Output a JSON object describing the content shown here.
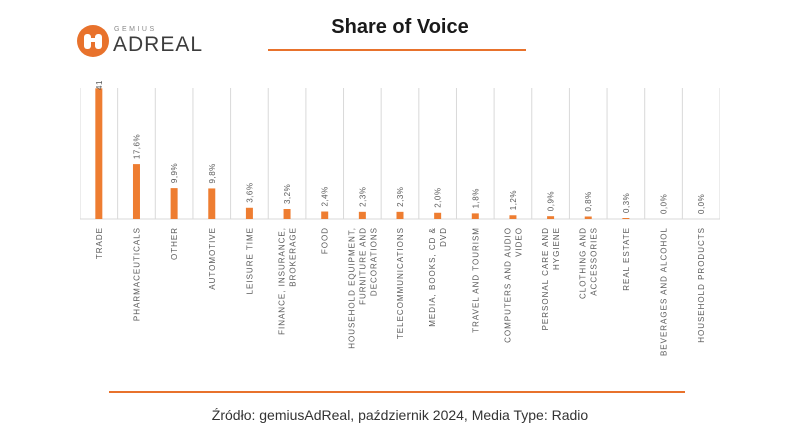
{
  "logo": {
    "small": "GEMIUS",
    "big": "ADREAL",
    "mark": "binoculars-icon"
  },
  "title": "Share of Voice",
  "footer": "Źródło: gemiusAdReal, październik 2024, Media Type: Radio",
  "colors": {
    "accent": "#e8722c",
    "bar": "#ee7d31",
    "grid": "#d9d9d9",
    "text": "#595959"
  },
  "chart_data": {
    "type": "bar",
    "categories": [
      "TRADE",
      "PHARMACEUTICALS",
      "OTHER",
      "AUTOMOTIVE",
      "LEISURE TIME",
      "FINANCE, INSURANCE, BROKERAGE",
      "FOOD",
      "HOUSEHOLD EQUIPMENT, FURNITURE AND DECORATIONS",
      "TELECOMMUNICATIONS",
      "MEDIA, BOOKS, CD & DVD",
      "TRAVEL AND TOURISM",
      "COMPUTERS AND AUDIO VIDEO",
      "PERSONAL CARE AND HYGIENE",
      "CLOTHING AND ACCESSORIES",
      "REAL ESTATE",
      "BEVERAGES AND ALCOHOL",
      "HOUSEHOLD PRODUCTS"
    ],
    "values": [
      41.9,
      17.6,
      9.9,
      9.8,
      3.6,
      3.2,
      2.4,
      2.3,
      2.3,
      2.0,
      1.8,
      1.2,
      0.9,
      0.8,
      0.3,
      0.0,
      0.0
    ],
    "labels": [
      "41,9%",
      "17,6%",
      "9,9%",
      "9,8%",
      "3,6%",
      "3,2%",
      "2,4%",
      "2,3%",
      "2,3%",
      "2,0%",
      "1,8%",
      "1,2%",
      "0,9%",
      "0,8%",
      "0,3%",
      "0,0%",
      "0,0%"
    ],
    "ylim": [
      0,
      42
    ],
    "grid": "vertical separators"
  }
}
